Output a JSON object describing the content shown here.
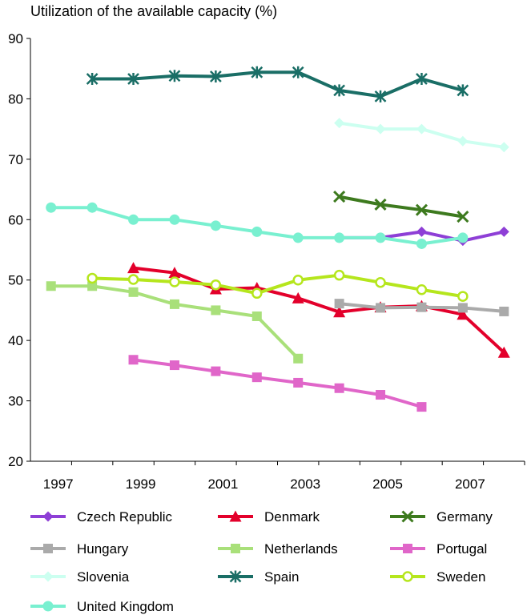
{
  "chart_data": {
    "type": "line",
    "title": "Utilization of the available capacity (%)",
    "xlabel": "",
    "ylabel": "",
    "ylim": [
      20,
      90
    ],
    "yticks": [
      20,
      30,
      40,
      50,
      60,
      70,
      80,
      90
    ],
    "xlim": [
      1996.5,
      2008.5
    ],
    "xticks": [
      1997,
      1999,
      2001,
      2003,
      2005,
      2007
    ],
    "grid": false,
    "legend_position": "bottom",
    "series": [
      {
        "name": "Czech Republic",
        "color": "#8e3fd6",
        "marker": "diamond",
        "x": [
          2004,
          2005,
          2006,
          2007,
          2008
        ],
        "y": [
          57,
          57,
          58,
          56.5,
          58
        ]
      },
      {
        "name": "Denmark",
        "color": "#e3002b",
        "marker": "triangle",
        "x": [
          1999,
          2000,
          2001,
          2002,
          2003,
          2004,
          2005,
          2006,
          2007,
          2008
        ],
        "y": [
          52,
          51.2,
          48.5,
          48.7,
          47,
          44.7,
          45.5,
          45.7,
          44.3,
          38
        ]
      },
      {
        "name": "Germany",
        "color": "#3d7a1e",
        "marker": "x",
        "x": [
          2004,
          2005,
          2006,
          2007
        ],
        "y": [
          63.8,
          62.5,
          61.6,
          60.5
        ]
      },
      {
        "name": "Hungary",
        "color": "#aaaaaa",
        "marker": "square",
        "x": [
          2004,
          2005,
          2006,
          2007,
          2008
        ],
        "y": [
          46.1,
          45.4,
          45.5,
          45.4,
          44.8
        ]
      },
      {
        "name": "Netherlands",
        "color": "#a9e07a",
        "marker": "square",
        "x": [
          1997,
          1998,
          1999,
          2000,
          2001,
          2002,
          2003
        ],
        "y": [
          49,
          49,
          48,
          46,
          45,
          44,
          37
        ]
      },
      {
        "name": "Portugal",
        "color": "#e066c9",
        "marker": "square",
        "x": [
          1999,
          2000,
          2001,
          2002,
          2003,
          2004,
          2005,
          2006
        ],
        "y": [
          36.8,
          35.9,
          34.9,
          33.9,
          33,
          32.1,
          31,
          29
        ]
      },
      {
        "name": "Slovenia",
        "color": "#ccfff0",
        "marker": "diamond",
        "x": [
          2004,
          2005,
          2006,
          2007,
          2008
        ],
        "y": [
          76,
          75,
          75,
          73,
          72
        ]
      },
      {
        "name": "Spain",
        "color": "#1a6e66",
        "marker": "asterisk",
        "x": [
          1998,
          1999,
          2000,
          2001,
          2002,
          2003,
          2004,
          2005,
          2006,
          2007
        ],
        "y": [
          83.3,
          83.3,
          83.8,
          83.7,
          84.4,
          84.4,
          81.4,
          80.4,
          83.3,
          81.4
        ]
      },
      {
        "name": "Sweden",
        "color": "#b5e61d",
        "marker": "circle-open",
        "x": [
          1998,
          1999,
          2000,
          2001,
          2002,
          2003,
          2004,
          2005,
          2006,
          2007
        ],
        "y": [
          50.3,
          50.1,
          49.7,
          49.2,
          47.8,
          50,
          50.8,
          49.6,
          48.4,
          47.3
        ]
      },
      {
        "name": "United Kingdom",
        "color": "#79f0d0",
        "marker": "circle",
        "x": [
          1997,
          1998,
          1999,
          2000,
          2001,
          2002,
          2003,
          2004,
          2005,
          2006,
          2007
        ],
        "y": [
          62,
          62,
          60,
          60,
          59,
          58,
          57,
          57,
          57,
          56,
          57
        ]
      }
    ]
  }
}
